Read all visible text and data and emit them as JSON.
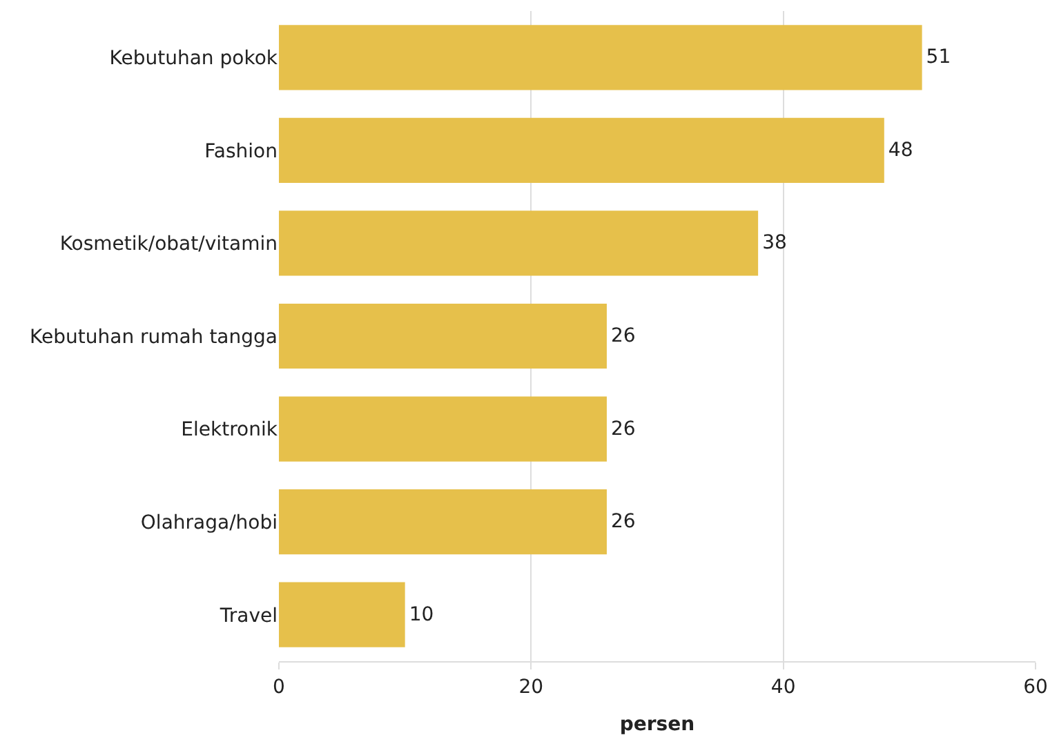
{
  "chart_data": {
    "type": "bar",
    "orientation": "horizontal",
    "xlabel": "persen",
    "categories": [
      "Kebutuhan pokok",
      "Fashion",
      "Kosmetik/obat/vitamin",
      "Kebutuhan rumah tangga",
      "Elektronik",
      "Olahraga/hobi",
      "Travel"
    ],
    "values": [
      51,
      48,
      38,
      26,
      26,
      26,
      10
    ],
    "color": "#e6c04b",
    "xlim": [
      0,
      60
    ],
    "xticks": [
      0,
      20,
      40,
      60
    ],
    "grid": "x",
    "data_labels": true
  }
}
